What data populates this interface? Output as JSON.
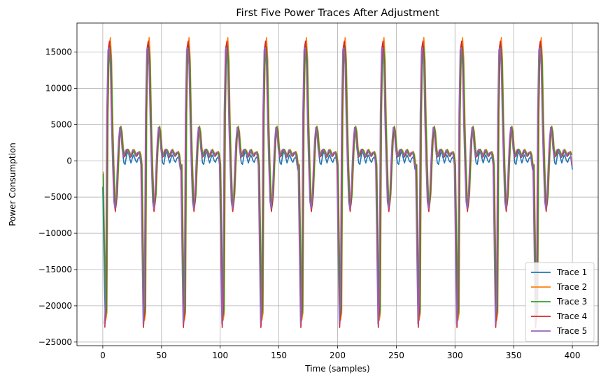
{
  "chart_data": {
    "type": "line",
    "title": "First Five Power Traces After Adjustment",
    "xlabel": "Time (samples)",
    "ylabel": "Power Consumption",
    "xlim": [
      -22,
      422
    ],
    "ylim": [
      -25500,
      19000
    ],
    "xticks": [
      0,
      50,
      100,
      150,
      200,
      250,
      300,
      350,
      400
    ],
    "xtick_labels": [
      "0",
      "50",
      "100",
      "150",
      "200",
      "250",
      "300",
      "350",
      "400"
    ],
    "yticks": [
      -25000,
      -20000,
      -15000,
      -10000,
      -5000,
      0,
      5000,
      10000,
      15000
    ],
    "ytick_labels": [
      "−25000",
      "−20000",
      "−15000",
      "−10000",
      "−5000",
      "0",
      "5000",
      "10000",
      "15000"
    ],
    "grid": true,
    "legend_position": "lower-right",
    "series": [
      {
        "name": "Trace 1",
        "color": "#1f77b4",
        "phase": 0.0,
        "baseline": 0,
        "min_value": -22500,
        "max_value": 16000,
        "cycle_shape": [
          [
            0,
            -1200
          ],
          [
            2,
            -21500
          ],
          [
            3,
            -20000
          ],
          [
            4,
            6000
          ],
          [
            5,
            14500
          ],
          [
            6,
            15200
          ],
          [
            7,
            13000
          ],
          [
            8,
            5000
          ],
          [
            9,
            -1000
          ],
          [
            10,
            -5500
          ],
          [
            11,
            -6500
          ],
          [
            12,
            -5000
          ],
          [
            13,
            -1000
          ],
          [
            14,
            2500
          ],
          [
            15,
            4300
          ],
          [
            16,
            3500
          ],
          [
            17,
            1000
          ],
          [
            18,
            -300
          ],
          [
            19,
            -500
          ],
          [
            20,
            500
          ],
          [
            21,
            1200
          ],
          [
            22,
            1000
          ],
          [
            23,
            300
          ],
          [
            24,
            -300
          ],
          [
            25,
            300
          ],
          [
            26,
            800
          ],
          [
            27,
            500
          ],
          [
            28,
            0
          ],
          [
            29,
            -200
          ],
          [
            30,
            300
          ],
          [
            31,
            500
          ],
          [
            32,
            200
          ],
          [
            33,
            -1200
          ]
        ]
      },
      {
        "name": "Trace 2",
        "color": "#ff7f0e",
        "phase": 0.5,
        "baseline": 700,
        "min_value": -22500,
        "max_value": 17200,
        "cycle_shape": [
          [
            0,
            -500
          ],
          [
            2,
            -22000
          ],
          [
            3,
            -21000
          ],
          [
            4,
            6500
          ],
          [
            5,
            15500
          ],
          [
            6,
            17000
          ],
          [
            7,
            14000
          ],
          [
            8,
            5500
          ],
          [
            9,
            -500
          ],
          [
            10,
            -5000
          ],
          [
            11,
            -6000
          ],
          [
            12,
            -4500
          ],
          [
            13,
            -500
          ],
          [
            14,
            3000
          ],
          [
            15,
            4800
          ],
          [
            16,
            4000
          ],
          [
            17,
            1800
          ],
          [
            18,
            700
          ],
          [
            19,
            800
          ],
          [
            20,
            1500
          ],
          [
            21,
            1600
          ],
          [
            22,
            1400
          ],
          [
            23,
            1000
          ],
          [
            24,
            700
          ],
          [
            25,
            1100
          ],
          [
            26,
            1600
          ],
          [
            27,
            1300
          ],
          [
            28,
            900
          ],
          [
            29,
            800
          ],
          [
            30,
            1200
          ],
          [
            31,
            1300
          ],
          [
            32,
            900
          ],
          [
            33,
            -500
          ]
        ]
      },
      {
        "name": "Trace 3",
        "color": "#2ca02c",
        "phase": 0.3,
        "baseline": 600,
        "min_value": -22000,
        "max_value": 16000,
        "cycle_shape": [
          [
            0,
            -600
          ],
          [
            2,
            -21500
          ],
          [
            3,
            -20500
          ],
          [
            4,
            6500
          ],
          [
            5,
            15200
          ],
          [
            6,
            15800
          ],
          [
            7,
            13500
          ],
          [
            8,
            5300
          ],
          [
            9,
            -600
          ],
          [
            10,
            -5200
          ],
          [
            11,
            -6200
          ],
          [
            12,
            -4700
          ],
          [
            13,
            -600
          ],
          [
            14,
            2900
          ],
          [
            15,
            4700
          ],
          [
            16,
            3900
          ],
          [
            17,
            1700
          ],
          [
            18,
            600
          ],
          [
            19,
            700
          ],
          [
            20,
            1400
          ],
          [
            21,
            1600
          ],
          [
            22,
            1300
          ],
          [
            23,
            900
          ],
          [
            24,
            600
          ],
          [
            25,
            1000
          ],
          [
            26,
            1500
          ],
          [
            27,
            1200
          ],
          [
            28,
            800
          ],
          [
            29,
            700
          ],
          [
            30,
            1100
          ],
          [
            31,
            1200
          ],
          [
            32,
            800
          ],
          [
            33,
            -600
          ]
        ]
      },
      {
        "name": "Trace 4",
        "color": "#d62728",
        "phase": -0.3,
        "baseline": 600,
        "min_value": -23500,
        "max_value": 16500,
        "cycle_shape": [
          [
            0,
            -700
          ],
          [
            2,
            -23000
          ],
          [
            3,
            -20000
          ],
          [
            4,
            6000
          ],
          [
            5,
            15500
          ],
          [
            6,
            16500
          ],
          [
            7,
            13000
          ],
          [
            8,
            5000
          ],
          [
            9,
            -800
          ],
          [
            10,
            -5800
          ],
          [
            11,
            -7000
          ],
          [
            12,
            -5200
          ],
          [
            13,
            -800
          ],
          [
            14,
            2700
          ],
          [
            15,
            4600
          ],
          [
            16,
            3800
          ],
          [
            17,
            1600
          ],
          [
            18,
            500
          ],
          [
            19,
            600
          ],
          [
            20,
            1300
          ],
          [
            21,
            1500
          ],
          [
            22,
            1200
          ],
          [
            23,
            800
          ],
          [
            24,
            500
          ],
          [
            25,
            900
          ],
          [
            26,
            1400
          ],
          [
            27,
            1100
          ],
          [
            28,
            700
          ],
          [
            29,
            600
          ],
          [
            30,
            1000
          ],
          [
            31,
            1100
          ],
          [
            32,
            700
          ],
          [
            33,
            -700
          ]
        ]
      },
      {
        "name": "Trace 5",
        "color": "#9467bd",
        "phase": -0.6,
        "baseline": 600,
        "min_value": -23000,
        "max_value": 16000,
        "cycle_shape": [
          [
            0,
            -600
          ],
          [
            2,
            -22500
          ],
          [
            3,
            -19500
          ],
          [
            4,
            6500
          ],
          [
            5,
            15300
          ],
          [
            6,
            15600
          ],
          [
            7,
            13200
          ],
          [
            8,
            5200
          ],
          [
            9,
            -700
          ],
          [
            10,
            -5600
          ],
          [
            11,
            -6600
          ],
          [
            12,
            -5000
          ],
          [
            13,
            -700
          ],
          [
            14,
            2800
          ],
          [
            15,
            4600
          ],
          [
            16,
            3900
          ],
          [
            17,
            1700
          ],
          [
            18,
            600
          ],
          [
            19,
            700
          ],
          [
            20,
            1400
          ],
          [
            21,
            1600
          ],
          [
            22,
            1300
          ],
          [
            23,
            900
          ],
          [
            24,
            600
          ],
          [
            25,
            1000
          ],
          [
            26,
            1500
          ],
          [
            27,
            1200
          ],
          [
            28,
            800
          ],
          [
            29,
            700
          ],
          [
            30,
            1100
          ],
          [
            31,
            1200
          ],
          [
            32,
            800
          ],
          [
            33,
            -600
          ]
        ]
      }
    ],
    "x_range": [
      0,
      400
    ],
    "cycle_starts": [
      0,
      33,
      67,
      100,
      133,
      167,
      200,
      233,
      267,
      300,
      333,
      367
    ]
  }
}
